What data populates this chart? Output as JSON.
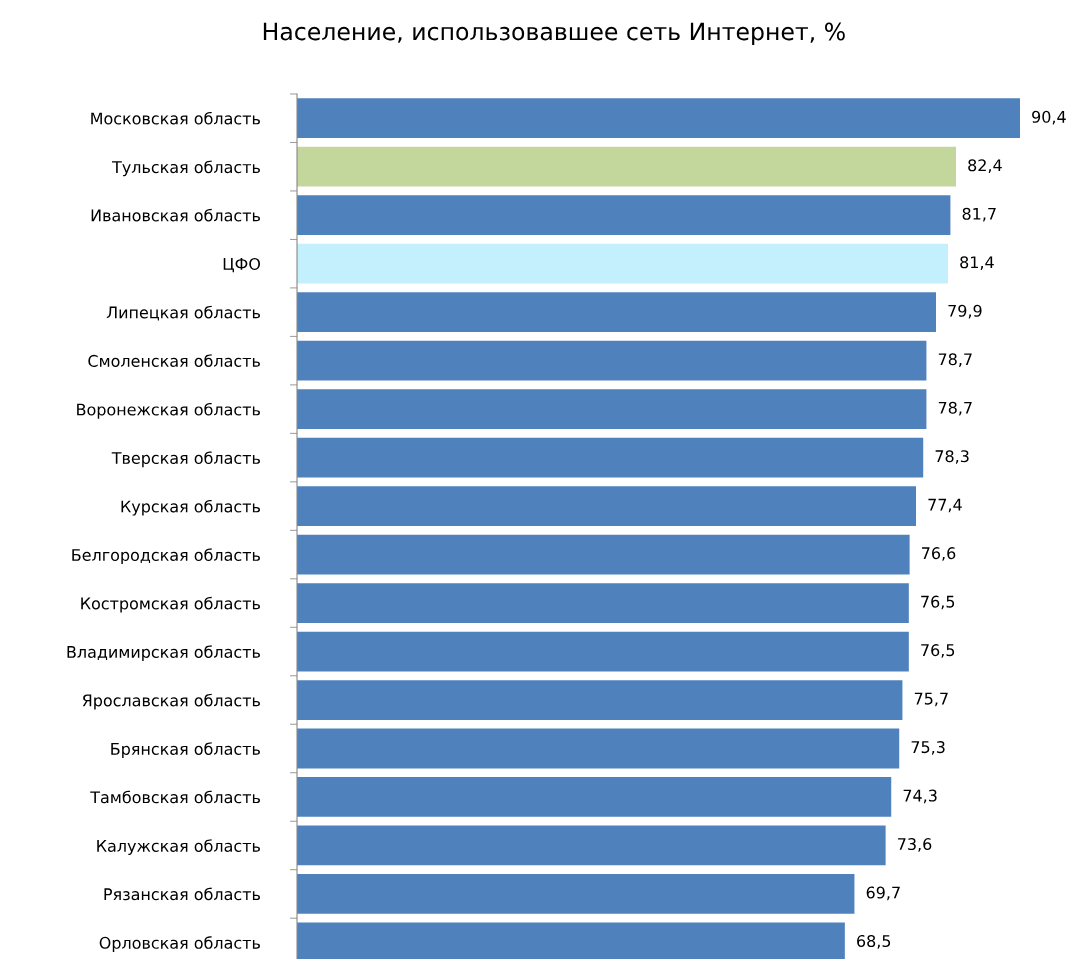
{
  "chart_data": {
    "type": "bar",
    "orientation": "horizontal",
    "title": "Население, использовавшее сеть Интернет, %",
    "categories": [
      "Московская область",
      "Тульская область",
      "Ивановская область",
      "ЦФО",
      "Липецкая область",
      "Смоленская область",
      "Воронежская область",
      "Тверская область",
      "Курская область",
      "Белгородская область",
      "Костромская область",
      "Владимирская область",
      "Ярославская область",
      "Брянская область",
      "Тамбовская область",
      "Калужская область",
      "Рязанская область",
      "Орловская область"
    ],
    "values": [
      90.4,
      82.4,
      81.7,
      81.4,
      79.9,
      78.7,
      78.7,
      78.3,
      77.4,
      76.6,
      76.5,
      76.5,
      75.7,
      75.3,
      74.3,
      73.6,
      69.7,
      68.5
    ],
    "value_labels": [
      "90,4",
      "82,4",
      "81,7",
      "81,4",
      "79,9",
      "78,7",
      "78,7",
      "78,3",
      "77,4",
      "76,6",
      "76,5",
      "76,5",
      "75,7",
      "75,3",
      "74,3",
      "73,6",
      "69,7",
      "68,5"
    ],
    "colors": [
      "#4f81bd",
      "#c3d69b",
      "#4f81bd",
      "#c4effc",
      "#4f81bd",
      "#4f81bd",
      "#4f81bd",
      "#4f81bd",
      "#4f81bd",
      "#4f81bd",
      "#4f81bd",
      "#4f81bd",
      "#4f81bd",
      "#4f81bd",
      "#4f81bd",
      "#4f81bd",
      "#4f81bd",
      "#4f81bd"
    ],
    "tick_labels": "y",
    "grid": false,
    "legend": false
  }
}
